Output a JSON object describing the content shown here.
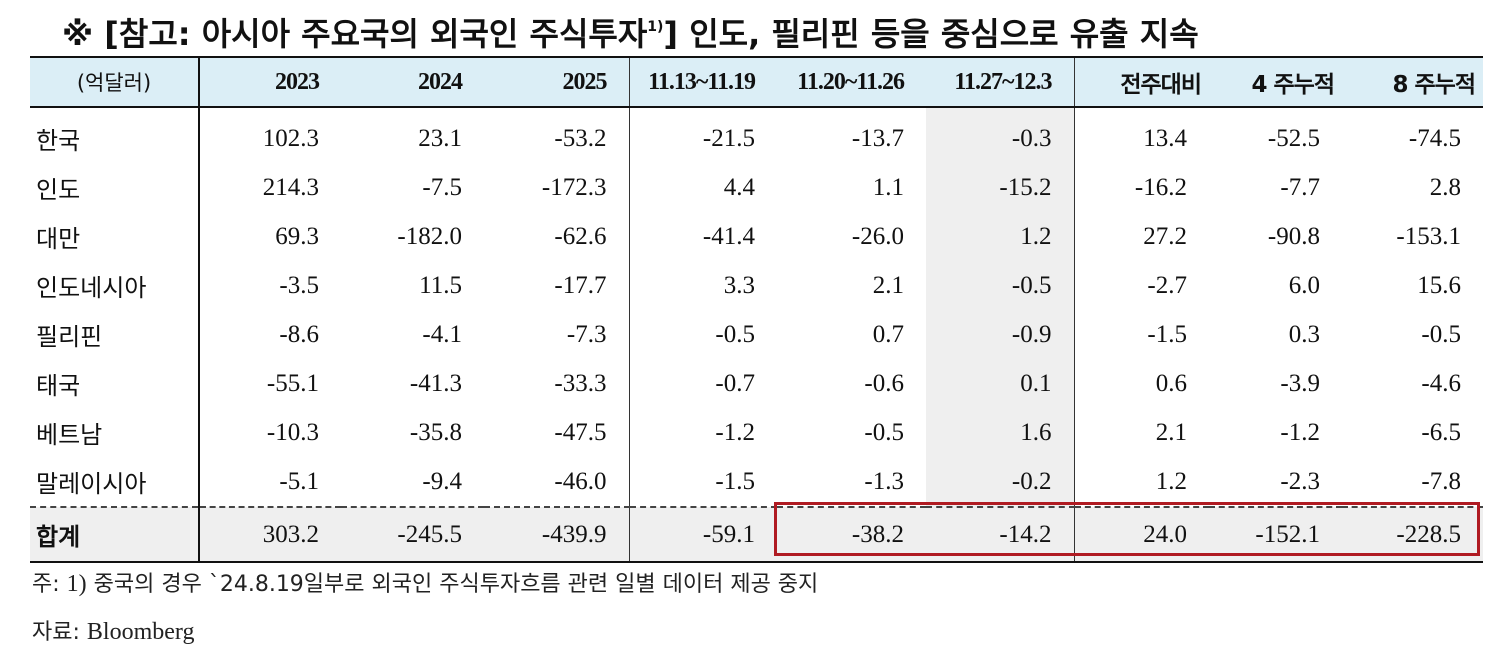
{
  "title": {
    "prefix": "※ [참고: 아시아 주요국의 외국인 주식투자",
    "sup": "1)",
    "suffix": "] 인도, 필리핀 등을 중심으로 유출 지속"
  },
  "table": {
    "unit_label": "(억달러)",
    "columns": [
      "2023",
      "2024",
      "2025",
      "11.13~11.19",
      "11.20~11.26",
      "11.27~12.3",
      "전주대비",
      "4 주누적",
      "8 주누적"
    ],
    "rows": [
      {
        "label": "한국",
        "values": [
          "102.3",
          "23.1",
          "-53.2",
          "-21.5",
          "-13.7",
          "-0.3",
          "13.4",
          "-52.5",
          "-74.5"
        ]
      },
      {
        "label": "인도",
        "values": [
          "214.3",
          "-7.5",
          "-172.3",
          "4.4",
          "1.1",
          "-15.2",
          "-16.2",
          "-7.7",
          "2.8"
        ]
      },
      {
        "label": "대만",
        "values": [
          "69.3",
          "-182.0",
          "-62.6",
          "-41.4",
          "-26.0",
          "1.2",
          "27.2",
          "-90.8",
          "-153.1"
        ]
      },
      {
        "label": "인도네시아",
        "values": [
          "-3.5",
          "11.5",
          "-17.7",
          "3.3",
          "2.1",
          "-0.5",
          "-2.7",
          "6.0",
          "15.6"
        ]
      },
      {
        "label": "필리핀",
        "values": [
          "-8.6",
          "-4.1",
          "-7.3",
          "-0.5",
          "0.7",
          "-0.9",
          "-1.5",
          "0.3",
          "-0.5"
        ]
      },
      {
        "label": "태국",
        "values": [
          "-55.1",
          "-41.3",
          "-33.3",
          "-0.7",
          "-0.6",
          "0.1",
          "0.6",
          "-3.9",
          "-4.6"
        ]
      },
      {
        "label": "베트남",
        "values": [
          "-10.3",
          "-35.8",
          "-47.5",
          "-1.2",
          "-0.5",
          "1.6",
          "2.1",
          "-1.2",
          "-6.5"
        ]
      },
      {
        "label": "말레이시아",
        "values": [
          "-5.1",
          "-9.4",
          "-46.0",
          "-1.5",
          "-1.3",
          "-0.2",
          "1.2",
          "-2.3",
          "-7.8"
        ]
      }
    ],
    "total": {
      "label": "합계",
      "values": [
        "303.2",
        "-245.5",
        "-439.9",
        "-59.1",
        "-38.2",
        "-14.2",
        "24.0",
        "-152.1",
        "-228.5"
      ]
    }
  },
  "notes": {
    "note1_prefix": "주: ",
    "note1_num": "1)",
    "note1_text": " 중국의 경우 `24.8.19일부로 외국인 주식투자흐름 관련 일별 데이터 제공 중지",
    "source_label": "자료: ",
    "source_value": "Bloomberg"
  },
  "colors": {
    "header_bg": "#dbeef6",
    "shade_bg": "#efefef",
    "highlight_box": "#b01b22"
  }
}
